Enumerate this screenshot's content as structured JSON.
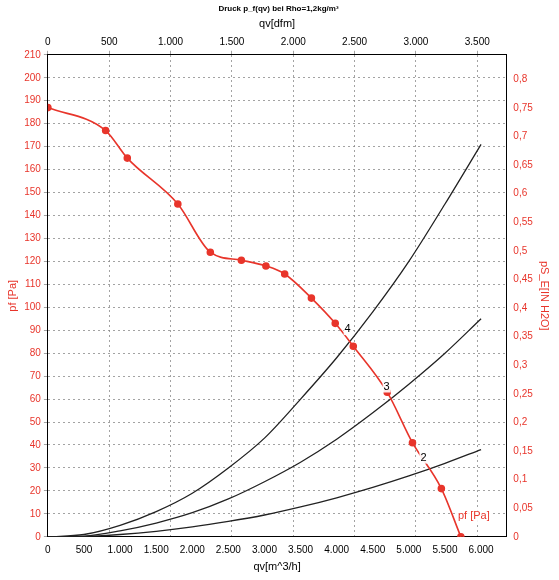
{
  "chart_data": {
    "type": "line",
    "title": "Druck p_f(qv) bei Rho=1,2kg/m³",
    "x_label": "qv[m^3/h]",
    "x2_label": "qv[dfm]",
    "y_label": "pf [Pa]",
    "y2_label": "pS_E[IN H2O]",
    "xlim": [
      0,
      6350
    ],
    "xticks": [
      0,
      500,
      {
        "value": 1000,
        "label": "1.000"
      },
      {
        "value": 1500,
        "label": "1.500"
      },
      {
        "value": 2000,
        "label": "2.000"
      },
      {
        "value": 2500,
        "label": "2.500"
      },
      {
        "value": 3000,
        "label": "3.000"
      },
      {
        "value": 3500,
        "label": "3.500"
      },
      {
        "value": 4000,
        "label": "4.000"
      },
      {
        "value": 4500,
        "label": "4.500"
      },
      {
        "value": 5000,
        "label": "5.000"
      },
      {
        "value": 5500,
        "label": "5.500"
      },
      {
        "value": 6000,
        "label": "6.000"
      }
    ],
    "x2lim": [
      0,
      3737
    ],
    "x2ticks": [
      0,
      500,
      {
        "value": 1000,
        "label": "1.000"
      },
      {
        "value": 1500,
        "label": "1.500"
      },
      {
        "value": 2000,
        "label": "2.000"
      },
      {
        "value": 2500,
        "label": "2.500"
      },
      {
        "value": 3000,
        "label": "3.000"
      },
      {
        "value": 3500,
        "label": "3.500"
      }
    ],
    "ylim": [
      0,
      210
    ],
    "yticks": [
      0,
      10,
      20,
      30,
      40,
      50,
      60,
      70,
      80,
      90,
      100,
      110,
      120,
      130,
      140,
      150,
      160,
      170,
      180,
      190,
      200,
      210
    ],
    "y2lim": [
      0,
      0.843
    ],
    "y2ticks": [
      0,
      {
        "value": 0.05,
        "label": "0,05"
      },
      {
        "value": 0.1,
        "label": "0,1"
      },
      {
        "value": 0.15,
        "label": "0,15"
      },
      {
        "value": 0.2,
        "label": "0,2"
      },
      {
        "value": 0.25,
        "label": "0,25"
      },
      {
        "value": 0.3,
        "label": "0,3"
      },
      {
        "value": 0.35,
        "label": "0,35"
      },
      {
        "value": 0.4,
        "label": "0,4"
      },
      {
        "value": 0.45,
        "label": "0,45"
      },
      {
        "value": 0.5,
        "label": "0,5"
      },
      {
        "value": 0.55,
        "label": "0,55"
      },
      {
        "value": 0.6,
        "label": "0,6"
      },
      {
        "value": 0.65,
        "label": "0,65"
      },
      {
        "value": 0.7,
        "label": "0,7"
      },
      {
        "value": 0.75,
        "label": "0,75"
      },
      {
        "value": 0.8,
        "label": "0,8"
      }
    ],
    "grid": true,
    "series": [
      {
        "color": "#e8352b",
        "marker": "circle",
        "x": [
          0,
          800,
          1100,
          1800,
          2250,
          2680,
          3020,
          3280,
          3650,
          3980,
          4230,
          4700,
          5050,
          5450,
          5720
        ],
        "values": [
          187,
          177,
          165,
          145,
          124,
          120.5,
          118,
          114.5,
          104,
          93,
          83,
          63,
          41,
          21,
          0
        ]
      },
      {
        "color": "#222222",
        "marker": "none",
        "x": [
          0,
          500,
          1000,
          1500,
          2000,
          2500,
          3000,
          3500,
          4000,
          4500,
          5000,
          5500,
          6000
        ],
        "values": [
          0,
          1,
          5,
          11,
          19,
          30,
          43,
          60,
          78,
          98,
          120,
          145,
          171
        ]
      },
      {
        "color": "#222222",
        "marker": "none",
        "x": [
          0,
          500,
          1000,
          1500,
          2000,
          2500,
          3000,
          3500,
          4000,
          4500,
          5000,
          5500,
          6000
        ],
        "values": [
          0,
          0.3,
          2.6,
          6,
          10.5,
          16.5,
          24,
          32.5,
          42.5,
          54,
          66.5,
          80,
          95
        ]
      },
      {
        "color": "#222222",
        "marker": "none",
        "x": [
          0,
          500,
          1000,
          1500,
          2000,
          2500,
          3000,
          3500,
          4000,
          4500,
          5000,
          5500,
          6000
        ],
        "values": [
          0,
          0.1,
          1,
          2.4,
          4.3,
          6.7,
          9.5,
          13,
          17,
          21.5,
          26.5,
          32,
          38
        ]
      }
    ],
    "annotations": [
      {
        "text": "4",
        "x": 4180,
        "y": 87,
        "color": "#000000"
      },
      {
        "text": "3",
        "x": 4720,
        "y": 62,
        "color": "#000000"
      },
      {
        "text": "2",
        "x": 5230,
        "y": 31,
        "color": "#000000"
      },
      {
        "text": "pf [Pa]",
        "x": 5900,
        "y": 9,
        "color": "#e8352b"
      }
    ]
  }
}
